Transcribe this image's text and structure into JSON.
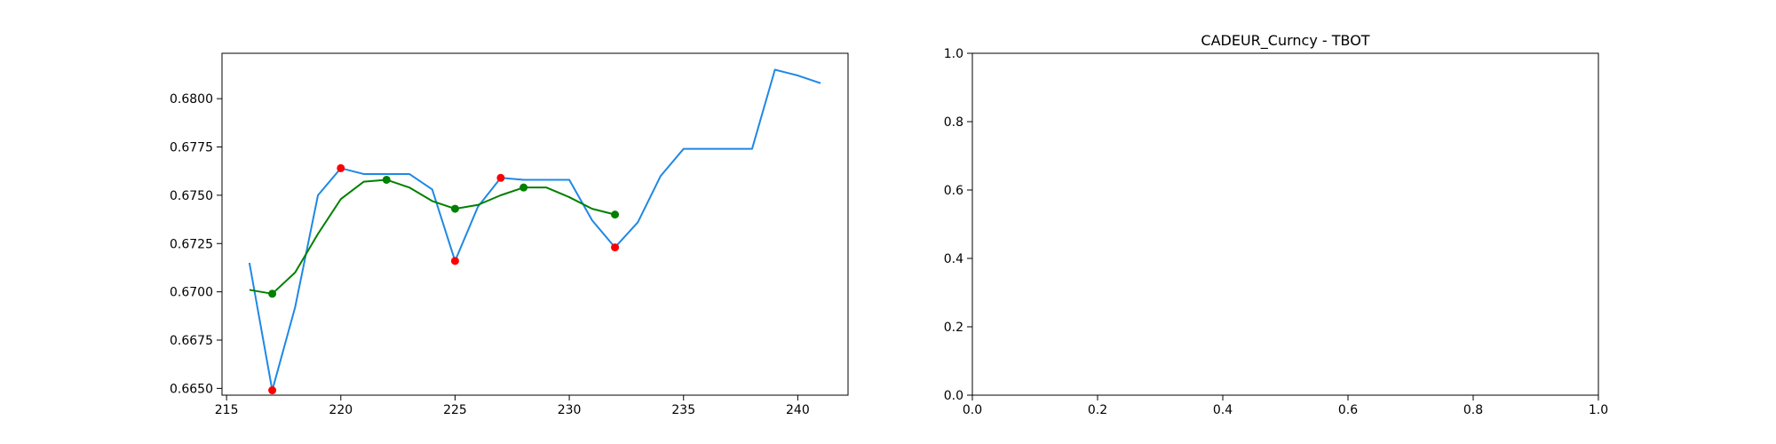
{
  "chart_data": [
    {
      "type": "line",
      "title": "",
      "xlabel": "",
      "ylabel": "",
      "xlim": [
        214.8,
        242.2
      ],
      "ylim": [
        0.66465,
        0.68235
      ],
      "xticks": [
        215,
        220,
        225,
        230,
        235,
        240
      ],
      "xtick_labels": [
        "215",
        "220",
        "225",
        "230",
        "235",
        "240"
      ],
      "yticks": [
        0.665,
        0.6675,
        0.67,
        0.6725,
        0.675,
        0.6775,
        0.68
      ],
      "ytick_labels": [
        "0.6650",
        "0.6675",
        "0.6700",
        "0.6725",
        "0.6750",
        "0.6775",
        "0.6800"
      ],
      "grid": false,
      "series": [
        {
          "color": "#1e88e5",
          "kind": "line",
          "x": [
            216,
            217,
            218,
            219,
            220,
            221,
            222,
            223,
            224,
            225,
            226,
            227,
            228,
            229,
            230,
            231,
            232,
            233,
            234,
            235,
            236,
            237,
            238,
            239,
            240,
            241
          ],
          "y": [
            0.6715,
            0.6649,
            0.6692,
            0.675,
            0.6764,
            0.6761,
            0.6761,
            0.6761,
            0.6753,
            0.6716,
            0.6744,
            0.6759,
            0.6758,
            0.6758,
            0.6758,
            0.6737,
            0.6723,
            0.6736,
            0.676,
            0.6774,
            0.6774,
            0.6774,
            0.6774,
            0.6815,
            0.6812,
            0.6808
          ]
        },
        {
          "color": "#008000",
          "kind": "line",
          "x": [
            216,
            217,
            218,
            219,
            220,
            221,
            222,
            223,
            224,
            225,
            226,
            227,
            228,
            229,
            230,
            231,
            232
          ],
          "y": [
            0.6701,
            0.6699,
            0.671,
            0.673,
            0.6748,
            0.6757,
            0.6758,
            0.6754,
            0.6747,
            0.6743,
            0.6745,
            0.675,
            0.6754,
            0.6754,
            0.6749,
            0.6743,
            0.674
          ]
        },
        {
          "color": "#ff0000",
          "kind": "scatter",
          "x": [
            217,
            220,
            225,
            227,
            232
          ],
          "y": [
            0.6649,
            0.6764,
            0.6716,
            0.6759,
            0.6723
          ]
        },
        {
          "color": "#008000",
          "kind": "scatter",
          "x": [
            217,
            222,
            225,
            228,
            232
          ],
          "y": [
            0.6699,
            0.6758,
            0.6743,
            0.6754,
            0.674
          ]
        }
      ]
    },
    {
      "type": "line",
      "title": "CADEUR_Curncy - TBOT",
      "xlabel": "",
      "ylabel": "",
      "xlim": [
        0,
        1
      ],
      "ylim": [
        0,
        1
      ],
      "xticks": [
        0,
        0.2,
        0.4,
        0.6,
        0.8,
        1
      ],
      "xtick_labels": [
        "0.0",
        "0.2",
        "0.4",
        "0.6",
        "0.8",
        "1.0"
      ],
      "yticks": [
        0,
        0.2,
        0.4,
        0.6,
        0.8,
        1
      ],
      "ytick_labels": [
        "0.0",
        "0.2",
        "0.4",
        "0.6",
        "0.8",
        "1.0"
      ],
      "grid": false,
      "series": []
    }
  ]
}
